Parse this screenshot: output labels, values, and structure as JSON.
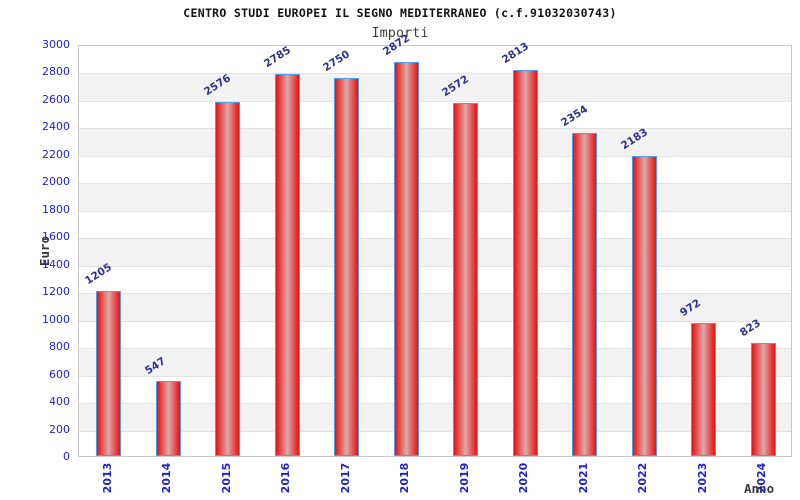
{
  "chart_data": {
    "type": "bar",
    "title": "CENTRO STUDI EUROPEI IL SEGNO MEDITERRANEO (c.f.91032030743)",
    "subtitle": "Importi",
    "categories": [
      "2013",
      "2014",
      "2015",
      "2016",
      "2017",
      "2018",
      "2019",
      "2020",
      "2021",
      "2022",
      "2023",
      "2024"
    ],
    "values": [
      1205,
      547,
      2576,
      2785,
      2750,
      2872,
      2572,
      2813,
      2354,
      2183,
      972,
      823
    ],
    "xlabel": "Anno",
    "ylabel": "Euro",
    "ylim": [
      0,
      3000
    ],
    "ytick_step": 200,
    "legend_visible": false,
    "grid": "horizontal-bands",
    "colors": {
      "tick_label": "#2222d2",
      "value_label": "#2f2f8f",
      "bar_edge": "#e01414",
      "bar_mid": "#e65252",
      "bar_center": "#dcaaaa",
      "bar_border": "#4d9fe8",
      "band_alt": "#f2f2f2",
      "band_line": "#e2e2e2",
      "plot_border": "#c9c9c9",
      "title_color": "#111111",
      "subtitle_color": "#404040",
      "axis_title_color": "#3a3a3a"
    }
  }
}
